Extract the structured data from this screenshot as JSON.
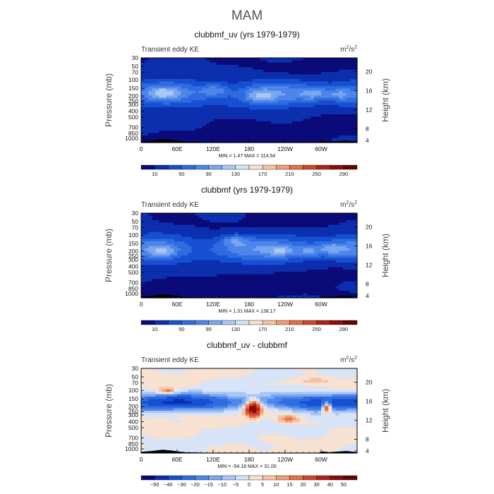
{
  "figure": {
    "title": "MAM"
  },
  "chart_data": [
    {
      "type": "heatmap",
      "title": "clubbmf_uv (yrs 1979-1979)",
      "subtitle_left": "Transient eddy KE",
      "units": "m2/s2",
      "ylabel_left": "Pressure (mb)",
      "ylabel_right": "Height (km)",
      "xticks": [
        "0",
        "60E",
        "120E",
        "180",
        "120W",
        "60W"
      ],
      "xlim": [
        0,
        360
      ],
      "pressure_ticks": [
        "30",
        "50",
        "70",
        "100",
        "150",
        "200",
        "250",
        "300",
        "400",
        "500",
        "700",
        "850",
        "1000"
      ],
      "height_ticks": [
        "20",
        "16",
        "12",
        "8",
        "4"
      ],
      "stats_label": "MIN =    1.47   MAX = 114.54",
      "min": 1.47,
      "max": 114.54,
      "colorbar_labels": [
        "10",
        "50",
        "90",
        "130",
        "170",
        "210",
        "250",
        "290"
      ],
      "levels": [
        10,
        30,
        50,
        70,
        90,
        110,
        130,
        150,
        170,
        190,
        210,
        230,
        250,
        270,
        290
      ]
    },
    {
      "type": "heatmap",
      "title": "clubbmf (yrs 1979-1979)",
      "subtitle_left": "Transient eddy KE",
      "units": "m2/s2",
      "ylabel_left": "Pressure (mb)",
      "ylabel_right": "Height (km)",
      "xticks": [
        "0",
        "60E",
        "120E",
        "180",
        "120W",
        "60W"
      ],
      "xlim": [
        0,
        360
      ],
      "pressure_ticks": [
        "30",
        "50",
        "70",
        "100",
        "150",
        "200",
        "250",
        "300",
        "400",
        "500",
        "700",
        "850",
        "1000"
      ],
      "height_ticks": [
        "20",
        "16",
        "12",
        "8",
        "4"
      ],
      "stats_label": "MIN =    1.31   MAX = 138.17",
      "min": 1.31,
      "max": 138.17,
      "colorbar_labels": [
        "10",
        "50",
        "90",
        "130",
        "170",
        "210",
        "250",
        "290"
      ],
      "levels": [
        10,
        30,
        50,
        70,
        90,
        110,
        130,
        150,
        170,
        190,
        210,
        230,
        250,
        270,
        290
      ]
    },
    {
      "type": "heatmap",
      "title": "clubbmf_uv - clubbmf",
      "subtitle_left": "Transient eddy KE",
      "units": "m2/s2",
      "ylabel_left": "Pressure (mb)",
      "ylabel_right": "Height (km)",
      "xticks": [
        "0",
        "60E",
        "120E",
        "180",
        "120W",
        "60W"
      ],
      "xlim": [
        0,
        360
      ],
      "pressure_ticks": [
        "30",
        "50",
        "70",
        "100",
        "150",
        "200",
        "250",
        "300",
        "400",
        "500",
        "700",
        "850",
        "1000"
      ],
      "height_ticks": [
        "20",
        "16",
        "12",
        "8",
        "4"
      ],
      "stats_label": "MIN =  -54.18   MAX =  31.00",
      "min": -54.18,
      "max": 31.0,
      "colorbar_labels": [
        "−50",
        "−40",
        "−30",
        "−20",
        "−15",
        "−10",
        "−5",
        "0",
        "5",
        "10",
        "15",
        "20",
        "30",
        "40",
        "50"
      ],
      "levels": [
        -50,
        -40,
        -30,
        -20,
        -15,
        -10,
        -5,
        0,
        5,
        10,
        15,
        20,
        30,
        40,
        50
      ]
    }
  ],
  "palette": [
    "#0a0a78",
    "#0b2fae",
    "#1650d2",
    "#2e6ce0",
    "#4c86ea",
    "#7aa6f0",
    "#a9c6f5",
    "#d7e4f8",
    "#f6e1d2",
    "#f6c2a2",
    "#f19c72",
    "#e56f45",
    "#d1462b",
    "#b02218",
    "#8c0c0c",
    "#600404"
  ]
}
